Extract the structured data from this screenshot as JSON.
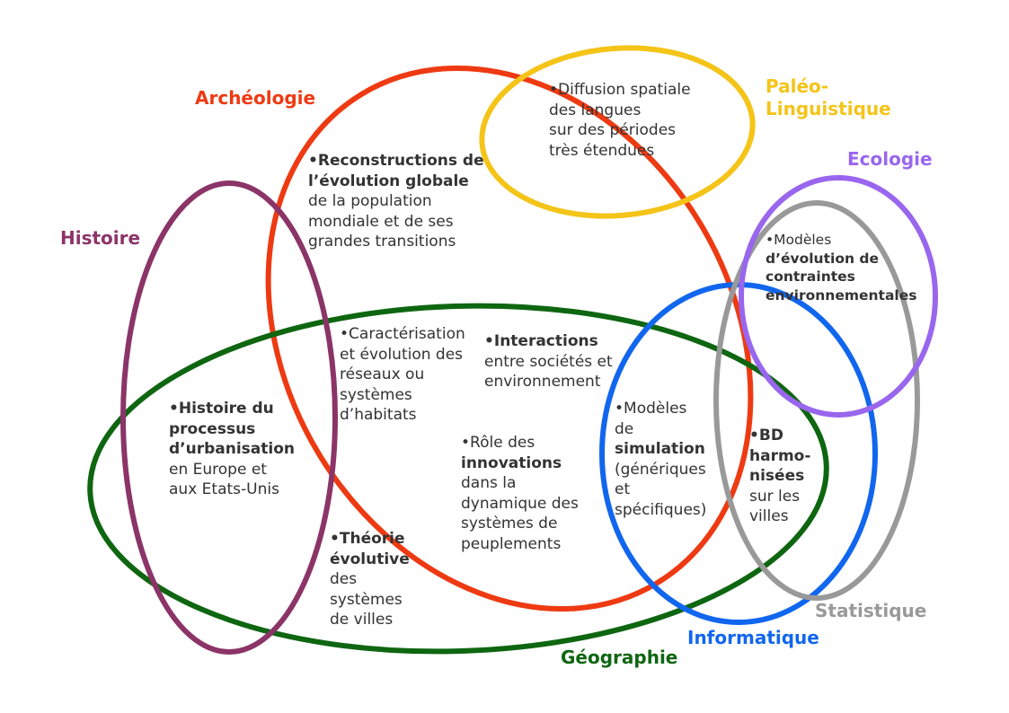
{
  "colors": {
    "histoire": "#8B3468",
    "archeologie": "#EE3A12",
    "paleo": "#F4C418",
    "ecologie": "#9966EE",
    "geographie": "#0F6611",
    "informatique": "#1166EE",
    "statistique": "#999999",
    "text": "#333333"
  },
  "labels": {
    "archeologie": "Archéologie",
    "paleo_1": "Paléo-",
    "paleo_2": "Linguistique",
    "ecologie": "Ecologie",
    "histoire": "Histoire",
    "geographie": "Géographie",
    "informatique": "Informatique",
    "statistique": "Statistique"
  },
  "items": {
    "diffusion": {
      "line1": "•Diffusion spatiale",
      "line2": "des langues",
      "line3": "sur des périodes",
      "line4": "très étendues"
    },
    "reconstructions": {
      "bold1": "•Reconstructions de",
      "bold2": "l’évolution globale",
      "line3": "de la population",
      "line4": "mondiale et de ses",
      "line5": "grandes transitions"
    },
    "modeles_evolution": {
      "line1": "•Modèles",
      "bold2": "d’évolution de",
      "bold3": "contraintes",
      "bold4": "environnementales"
    },
    "caracterisation": {
      "line1": "•Caractérisation",
      "line2": "et évolution des",
      "line3": "réseaux ou",
      "line4": "systèmes",
      "line5": "d’habitats"
    },
    "interactions": {
      "bold1": "•Interactions",
      "line2": "entre sociétés et",
      "line3": "environnement"
    },
    "histoire_urbanisation": {
      "bold1": "•Histoire du",
      "bold2": "processus",
      "bold3": "d’urbanisation",
      "line4": "en Europe et",
      "line5": "aux Etats-Unis"
    },
    "role_innovations": {
      "line1": "•Rôle des",
      "bold2": "innovations",
      "line3": "dans la",
      "line4": "dynamique des",
      "line5": "systèmes de",
      "line6": "peuplements"
    },
    "modeles_simulation": {
      "line1": "•Modèles",
      "line2": "de",
      "bold3": "simulation",
      "line4": "(génériques",
      "line5": "et",
      "line6": "spécifiques)"
    },
    "bd_harmonisees": {
      "bold1": "•BD",
      "bold2": "harmo-",
      "bold3": "nisées",
      "line4": "sur les",
      "line5": "villes"
    },
    "theorie": {
      "bold1": "•Théorie",
      "bold2": "évolutive",
      "line3": "des",
      "line4": "systèmes",
      "line5": "de villes"
    }
  }
}
